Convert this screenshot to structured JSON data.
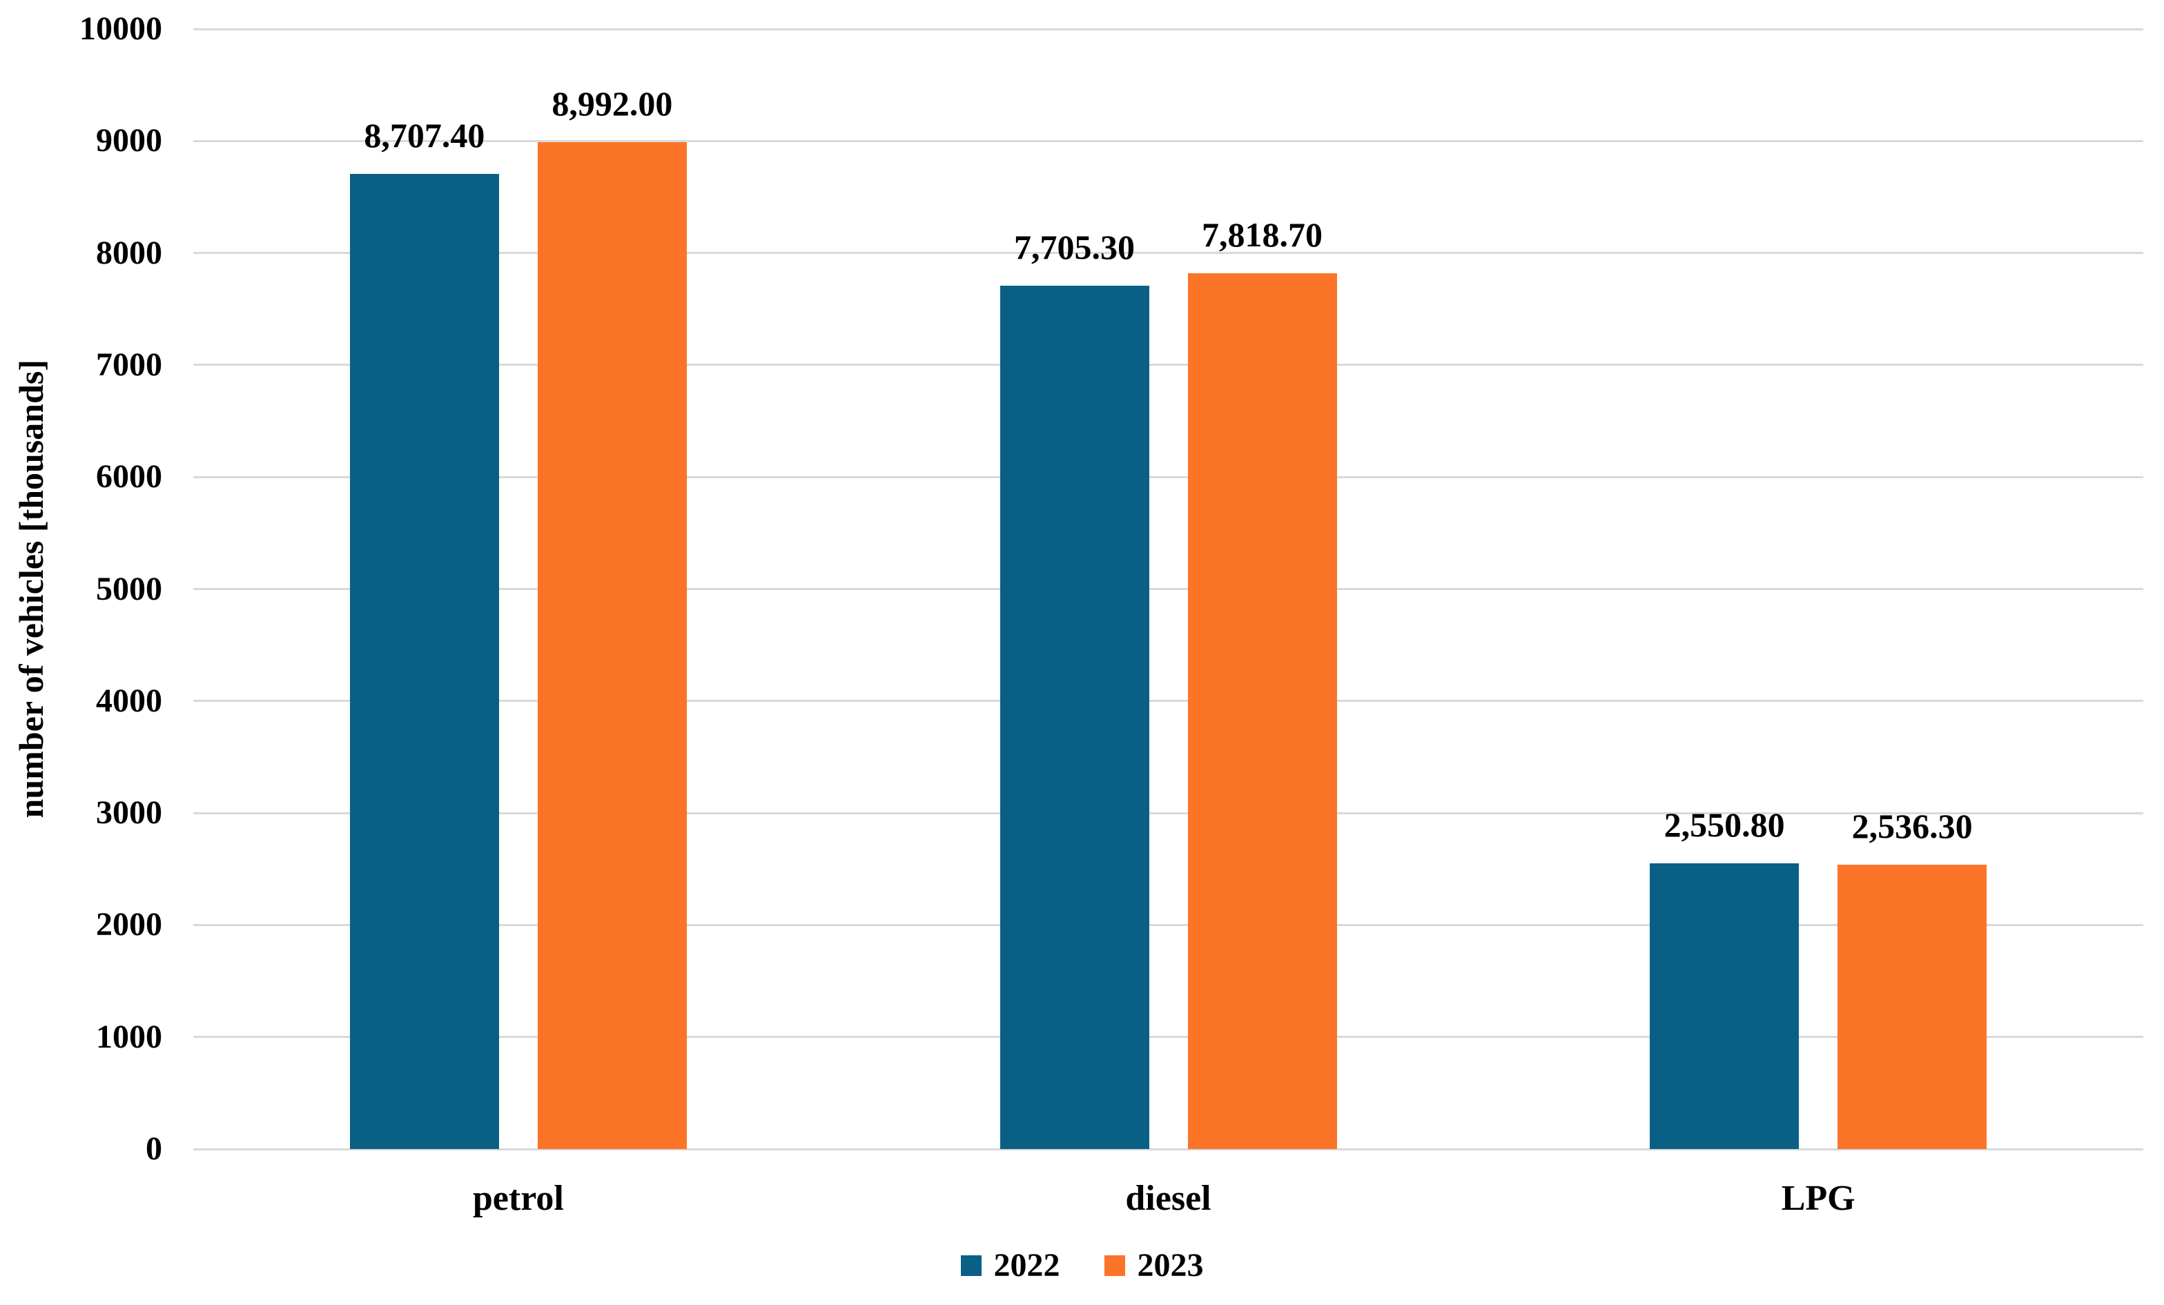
{
  "chart_data": {
    "type": "bar",
    "title": "",
    "categories": [
      "petrol",
      "diesel",
      "LPG"
    ],
    "series": [
      {
        "name": "2022",
        "color": "#0A6084",
        "values": [
          8707.4,
          7705.3,
          2550.8
        ],
        "labels": [
          "8,707.40",
          "7,705.30",
          "2,550.80"
        ]
      },
      {
        "name": "2023",
        "color": "#FC7428",
        "values": [
          8992.0,
          7818.7,
          2536.3
        ],
        "labels": [
          "8,992.00",
          "7,818.70",
          "2,536.30"
        ]
      }
    ],
    "xlabel": "",
    "ylabel": "number of vehicles [thousands]",
    "ylim": [
      0,
      10000
    ],
    "ytick_interval": 1000,
    "yticks": [
      "0",
      "1000",
      "2000",
      "3000",
      "4000",
      "5000",
      "6000",
      "7000",
      "8000",
      "9000",
      "10000"
    ],
    "grid": true,
    "gridline_color": "#D9D9D9",
    "legend_position": "bottom",
    "legend": [
      {
        "label": "2022",
        "color": "#0A6084"
      },
      {
        "label": "2023",
        "color": "#FC7428"
      }
    ]
  }
}
